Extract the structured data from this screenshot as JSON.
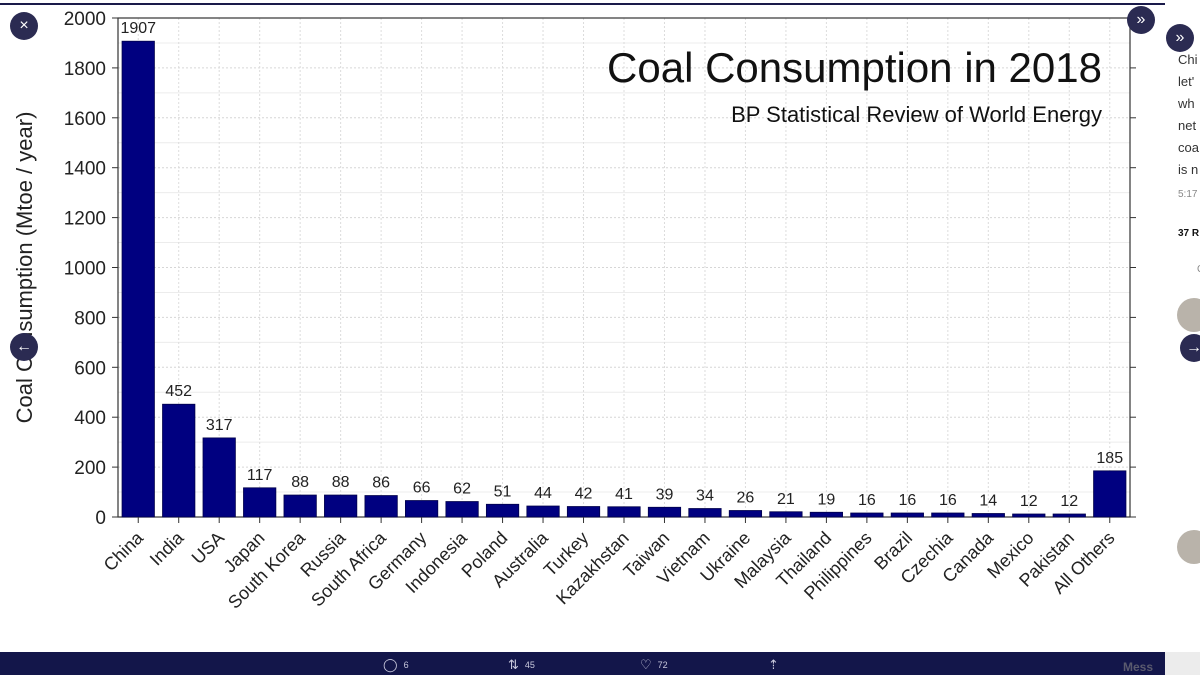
{
  "chart_data": {
    "type": "bar",
    "title": "Coal Consumption in 2018",
    "subtitle": "BP Statistical Review of World Energy",
    "xlabel": "",
    "ylabel": "Coal Consumption (Mtoe / year)",
    "ylim": [
      0,
      2000
    ],
    "yticks": [
      0,
      200,
      400,
      600,
      800,
      1000,
      1200,
      1400,
      1600,
      1800,
      2000
    ],
    "grid": true,
    "bar_color": "#000080",
    "categories": [
      "China",
      "India",
      "USA",
      "Japan",
      "South Korea",
      "Russia",
      "South Africa",
      "Germany",
      "Indonesia",
      "Poland",
      "Australia",
      "Turkey",
      "Kazakhstan",
      "Taiwan",
      "Vietnam",
      "Ukraine",
      "Malaysia",
      "Thailand",
      "Philippines",
      "Brazil",
      "Czechia",
      "Canada",
      "Mexico",
      "Pakistan",
      "All Others"
    ],
    "values": [
      1907,
      452,
      317,
      117,
      88,
      88,
      86,
      66,
      62,
      51,
      44,
      42,
      41,
      39,
      34,
      26,
      21,
      19,
      16,
      16,
      16,
      14,
      12,
      12,
      185
    ]
  },
  "side_panel": {
    "text_lines": [
      "Chi",
      "let'",
      "wh",
      "net",
      "coa",
      "is n"
    ],
    "time": "5:17",
    "count": "37 R",
    "letter": "C"
  },
  "controls": {
    "close_icon": "×",
    "expand_icon": "»",
    "back_icon": "←",
    "forward_icon": "→"
  },
  "bottom_bar": {
    "reply_count": "6",
    "retweet_count": "45",
    "like_count": "72",
    "messages_label": "Mess"
  },
  "colors": {
    "bottom_bar": "#13164a",
    "button": "#2b2b52"
  }
}
